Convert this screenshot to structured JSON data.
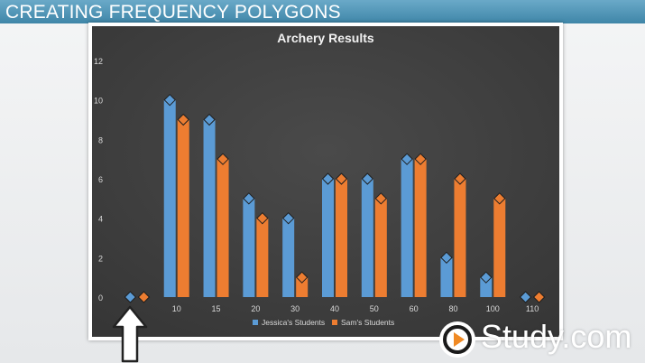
{
  "slide": {
    "title": "CREATING FREQUENCY POLYGONS"
  },
  "logo": {
    "text": "Study.com"
  },
  "colors": {
    "jessica": "#5b9bd5",
    "sam": "#ed7d31",
    "background": "#404040"
  },
  "chart_data": {
    "type": "bar",
    "title": "Archery Results",
    "xlabel": "",
    "ylabel": "",
    "categories": [
      "",
      "10",
      "15",
      "20",
      "30",
      "40",
      "50",
      "60",
      "80",
      "100",
      "110"
    ],
    "series": [
      {
        "name": "Jessica's Students",
        "values": [
          0,
          10,
          9,
          5,
          4,
          6,
          6,
          7,
          2,
          1,
          0
        ]
      },
      {
        "name": "Sam's Students",
        "values": [
          0,
          9,
          7,
          4,
          1,
          6,
          5,
          7,
          6,
          5,
          0
        ]
      }
    ],
    "ylim": [
      0,
      12
    ],
    "yticks": [
      "0",
      "2",
      "4",
      "6",
      "8",
      "10",
      "12"
    ],
    "legend": "bottom",
    "grid": false,
    "markers": "diamond"
  }
}
